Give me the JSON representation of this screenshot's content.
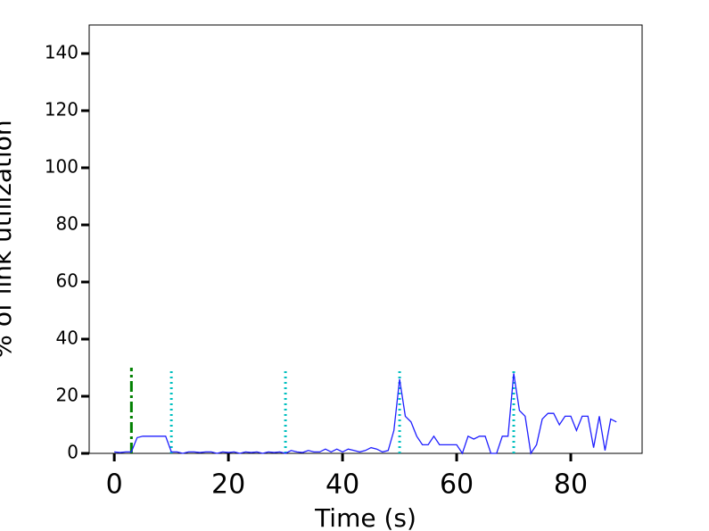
{
  "chart_data": {
    "type": "line",
    "xlabel": "Time (s)",
    "ylabel": "% of link utilization",
    "x": [
      0,
      1,
      2,
      3,
      4,
      5,
      6,
      7,
      8,
      9,
      10,
      11,
      12,
      13,
      14,
      15,
      16,
      17,
      18,
      19,
      20,
      21,
      22,
      23,
      24,
      25,
      26,
      27,
      28,
      29,
      30,
      31,
      32,
      33,
      34,
      35,
      36,
      37,
      38,
      39,
      40,
      41,
      42,
      43,
      44,
      45,
      46,
      47,
      48,
      49,
      50,
      51,
      52,
      53,
      54,
      55,
      56,
      57,
      58,
      59,
      60,
      61,
      62,
      63,
      64,
      65,
      66,
      67,
      68,
      69,
      70,
      71,
      72,
      73,
      74,
      75,
      76,
      77,
      78,
      79,
      80,
      81,
      82,
      83,
      84,
      85,
      86,
      87,
      88
    ],
    "series": [
      {
        "color": "#1f1fff",
        "values": [
          0.5,
          0.3,
          0.5,
          0.5,
          5.5,
          6,
          6,
          6,
          6,
          6,
          0.5,
          0.5,
          0,
          0.5,
          0.5,
          0.3,
          0.5,
          0.5,
          0,
          0.5,
          0.3,
          0.5,
          0,
          0.5,
          0.3,
          0.5,
          0,
          0.5,
          0.3,
          0.5,
          0,
          1,
          0.5,
          0.3,
          1,
          0.5,
          0.5,
          1.5,
          0.5,
          1.5,
          0.5,
          1.5,
          1,
          0.5,
          1,
          2,
          1.5,
          0.5,
          1,
          8,
          26,
          13,
          11,
          6,
          3,
          3,
          6,
          3,
          3,
          3,
          3,
          0,
          6,
          5,
          6,
          6,
          0,
          0,
          6,
          6,
          28,
          15,
          13,
          0,
          3,
          12,
          14,
          14,
          10,
          13,
          13,
          8,
          13,
          13,
          2,
          13,
          1,
          12,
          11
        ]
      }
    ],
    "vlines": [
      {
        "x": 3,
        "ymax": 30,
        "color": "#008000",
        "style": "dashdot"
      },
      {
        "x": 10,
        "ymax": 30,
        "color": "#00bfbf",
        "style": "dotted"
      },
      {
        "x": 30,
        "ymax": 30,
        "color": "#00bfbf",
        "style": "dotted"
      },
      {
        "x": 50,
        "ymax": 30,
        "color": "#00bfbf",
        "style": "dotted"
      },
      {
        "x": 70,
        "ymax": 30,
        "color": "#00bfbf",
        "style": "dotted"
      }
    ],
    "xlim": [
      -4.4,
      92.5
    ],
    "xticks": [
      0,
      20,
      40,
      60,
      80
    ],
    "ylim": [
      0,
      150
    ],
    "yticks": [
      0,
      20,
      40,
      60,
      80,
      100,
      120,
      140
    ],
    "grid": false
  }
}
